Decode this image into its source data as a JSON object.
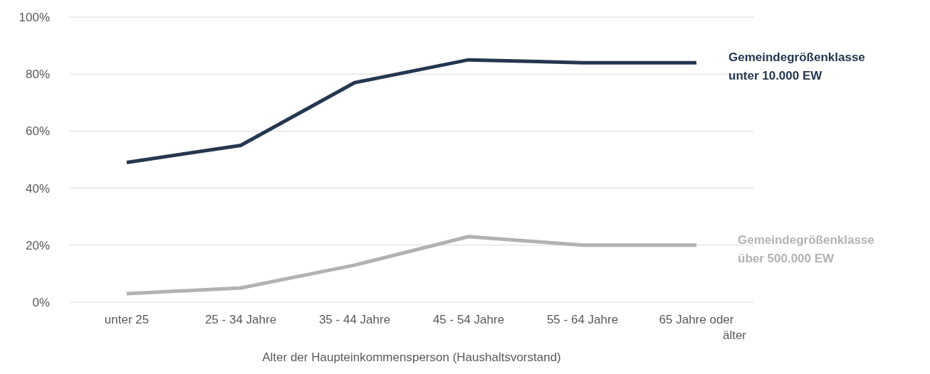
{
  "chart_data": {
    "type": "line",
    "xlabel": "Alter der Haupteinkommensperson (Haushaltsvorstand)",
    "categories": [
      "unter 25",
      "25 - 34 Jahre",
      "35 - 44 Jahre",
      "45 - 54 Jahre",
      "55 - 64 Jahre",
      "65 Jahre oder älter"
    ],
    "series": [
      {
        "name": "Gemeindegrößenklasse unter 10.000 EW",
        "color": "#253750",
        "values": [
          49,
          55,
          77,
          85,
          84,
          84
        ]
      },
      {
        "name": "Gemeindegrößenklasse über 500.000 EW",
        "color": "#b2b2b2",
        "values": [
          3,
          5,
          13,
          23,
          20,
          20
        ]
      }
    ],
    "ylim": [
      0,
      100
    ],
    "yticks": [
      {
        "value": 0,
        "label": "0%"
      },
      {
        "value": 20,
        "label": "20%"
      },
      {
        "value": 40,
        "label": "40%"
      },
      {
        "value": 60,
        "label": "60%"
      },
      {
        "value": 80,
        "label": "80%"
      },
      {
        "value": 100,
        "label": "100%"
      }
    ],
    "grid": "y",
    "legend": false,
    "marker": "none",
    "line_style": "solid"
  }
}
